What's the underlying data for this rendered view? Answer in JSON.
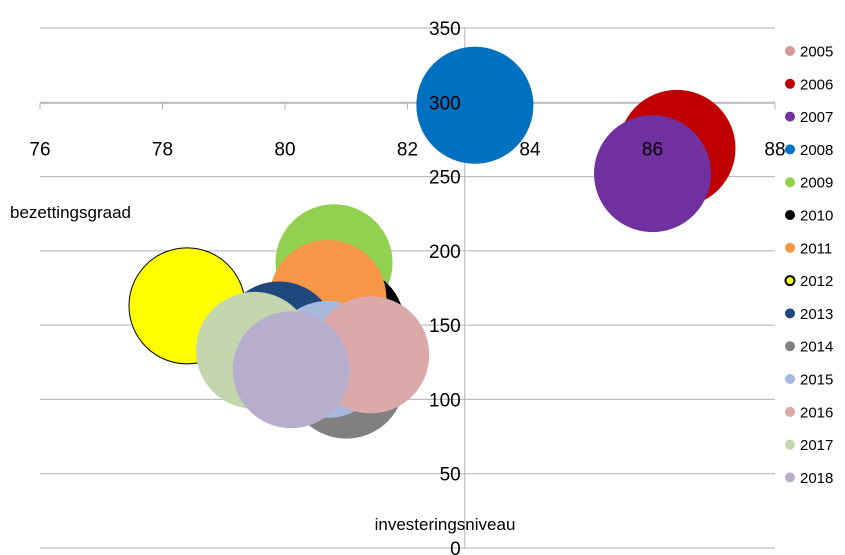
{
  "chart_data": {
    "type": "bubble",
    "xlabel": "investeringsniveau",
    "ylabel": "bezettingsgraad",
    "xlim": [
      76,
      88
    ],
    "ylim": [
      0,
      350
    ],
    "x_ticks": [
      76,
      78,
      80,
      82,
      84,
      86,
      88
    ],
    "y_ticks": [
      0,
      50,
      100,
      150,
      200,
      250,
      300,
      350
    ],
    "x_axis_crosses_y_at": 300,
    "y_axis_crosses_x_at": 83,
    "grid": "horizontal",
    "legend_position": "right",
    "series": [
      {
        "name": "2005",
        "x": 83.1,
        "y": 298,
        "size": 1.0,
        "color": "#d99694",
        "outline": "#d99694"
      },
      {
        "name": "2006",
        "x": 86.4,
        "y": 269,
        "size": 1.0,
        "color": "#c00000",
        "outline": "#c00000"
      },
      {
        "name": "2007",
        "x": 86.0,
        "y": 252,
        "size": 1.0,
        "color": "#7030a0",
        "outline": "#7030a0"
      },
      {
        "name": "2008",
        "x": 83.1,
        "y": 298,
        "size": 1.0,
        "color": "#0070c0",
        "outline": "#0070c0"
      },
      {
        "name": "2009",
        "x": 80.8,
        "y": 192,
        "size": 1.0,
        "color": "#92d050",
        "outline": "#92d050"
      },
      {
        "name": "2010",
        "x": 81.0,
        "y": 150,
        "size": 1.0,
        "color": "#000000",
        "outline": "#000000"
      },
      {
        "name": "2011",
        "x": 80.7,
        "y": 168,
        "size": 1.0,
        "color": "#f79646",
        "outline": "#f79646"
      },
      {
        "name": "2012",
        "x": 78.4,
        "y": 163,
        "size": 1.0,
        "color": "#ffff00",
        "outline": "#000000"
      },
      {
        "name": "2013",
        "x": 79.9,
        "y": 140,
        "size": 1.0,
        "color": "#1f497d",
        "outline": "#1f497d"
      },
      {
        "name": "2014",
        "x": 81.0,
        "y": 113,
        "size": 1.0,
        "color": "#808080",
        "outline": "#808080"
      },
      {
        "name": "2015",
        "x": 80.7,
        "y": 127,
        "size": 1.0,
        "color": "#a6b9db",
        "outline": "#a6b9db"
      },
      {
        "name": "2016",
        "x": 81.4,
        "y": 130,
        "size": 1.0,
        "color": "#dba9a9",
        "outline": "#dba9a9"
      },
      {
        "name": "2017",
        "x": 79.5,
        "y": 133,
        "size": 1.0,
        "color": "#c4d6ae",
        "outline": "#c4d6ae"
      },
      {
        "name": "2018",
        "x": 80.1,
        "y": 120,
        "size": 1.0,
        "color": "#b7aece",
        "outline": "#b7aece"
      }
    ]
  }
}
